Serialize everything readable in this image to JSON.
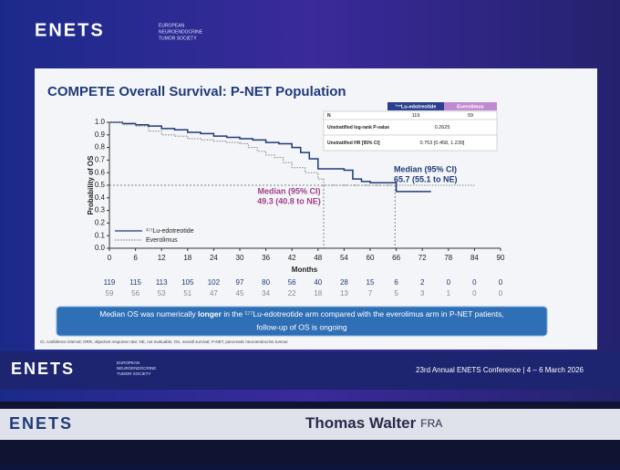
{
  "header": {
    "logo": "ENETS",
    "society": [
      "EUROPEAN",
      "NEUROENDOCRINE",
      "TUMOR SOCIETY"
    ]
  },
  "slide": {
    "title": "COMPETE Overall Survival: P-NET Population",
    "stats_table": {
      "columns": [
        "¹⁷⁷Lu-edotreotide",
        "Everolimus"
      ],
      "rows": [
        [
          "N",
          "119",
          "59"
        ],
        [
          "Unstratified log-rank P-value",
          "0.2625"
        ],
        [
          "Unstratified HR [95% CI]",
          "0.753 [0.458, 1.239]"
        ]
      ]
    },
    "at_risk": [
      [
        119,
        115,
        113,
        105,
        102,
        97,
        80,
        56,
        40,
        28,
        15,
        6,
        2,
        0,
        0,
        0
      ],
      [
        59,
        56,
        53,
        51,
        47,
        45,
        34,
        22,
        18,
        13,
        7,
        5,
        3,
        1,
        0,
        0
      ]
    ],
    "callout": [
      "Median OS was numerically ",
      "longer",
      " in the ¹⁷⁷Lu-edotreotide arm compared with the everolimus arm in P-NET patients,",
      "follow-up of OS is ongoing"
    ],
    "footnote": "CI, confidence interval; ORR, objective response rate; NE, not evaluable; OS, overall survival; P-NET, pancreatic neuroendocrine tumour",
    "footer": {
      "logo": "ENETS",
      "society": [
        "EUROPEAN",
        "NEUROENDOCRINE",
        "TUMOR SOCIETY"
      ],
      "conference": "23rd Annual ENETS Conference | 4 – 6 March 2026"
    }
  },
  "chart_data": {
    "type": "step",
    "xlabel": "Months",
    "ylabel": "Probability of OS",
    "xlim": [
      0,
      90
    ],
    "xticks": [
      0,
      6,
      12,
      18,
      24,
      30,
      36,
      42,
      48,
      54,
      60,
      66,
      72,
      78,
      84,
      90
    ],
    "ylim": [
      0,
      1
    ],
    "yticks": [
      {
        "value": 0,
        "label": "0.0"
      },
      0.1,
      0.2,
      0.3,
      0.4,
      0.5,
      0.6,
      0.7,
      0.8,
      0.9,
      {
        "value": 1,
        "label": "1.0"
      }
    ],
    "series": [
      {
        "name": "¹⁷⁷Lu-edotreotide",
        "color": "#1f3a7a",
        "x": [
          0,
          3,
          6,
          9,
          12,
          15,
          18,
          21,
          24,
          27,
          30,
          33,
          36,
          39,
          42,
          44,
          46,
          48,
          51,
          54,
          56,
          58,
          60,
          63,
          66,
          70,
          74
        ],
        "values": [
          1.0,
          0.99,
          0.98,
          0.97,
          0.95,
          0.94,
          0.92,
          0.91,
          0.89,
          0.88,
          0.87,
          0.86,
          0.84,
          0.83,
          0.8,
          0.76,
          0.71,
          0.63,
          0.63,
          0.62,
          0.55,
          0.53,
          0.52,
          0.52,
          0.45,
          0.45,
          0.45
        ]
      },
      {
        "name": "Everolimus",
        "color": "#8a8a8a",
        "x": [
          0,
          3,
          6,
          9,
          12,
          15,
          18,
          21,
          24,
          27,
          30,
          32,
          34,
          36,
          38,
          40,
          42,
          45,
          48,
          49.3,
          60,
          72,
          84
        ],
        "values": [
          1.0,
          0.98,
          0.97,
          0.93,
          0.9,
          0.89,
          0.87,
          0.86,
          0.85,
          0.84,
          0.83,
          0.8,
          0.77,
          0.74,
          0.72,
          0.68,
          0.64,
          0.6,
          0.55,
          0.5,
          0.5,
          0.5,
          0.5
        ]
      }
    ],
    "medians": [
      {
        "title": "Median (95% CI)",
        "label": "49.3 (40.8 to NE)",
        "x": 49.3,
        "color": "#a0408a"
      },
      {
        "title": "Median (95% CI)",
        "label": "65.7 (55.1 to NE)",
        "x": 65.7,
        "color": "#1f3a7a"
      }
    ]
  },
  "bottom_bar": {
    "logo": "ENETS",
    "speaker": "Thomas Walter",
    "country": "FRA"
  }
}
